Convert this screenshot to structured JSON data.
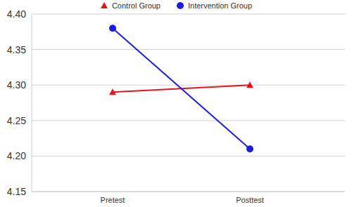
{
  "chart_data": {
    "type": "line",
    "categories": [
      "Pretest",
      "Posttest"
    ],
    "series": [
      {
        "name": "Control Group",
        "color": "#e8141c",
        "marker": "triangle",
        "values": [
          4.29,
          4.3
        ]
      },
      {
        "name": "Intervention Group",
        "color": "#1c1ce0",
        "marker": "circle",
        "values": [
          4.38,
          4.21
        ]
      }
    ],
    "ylim": [
      4.15,
      4.4
    ],
    "yticks": [
      4.15,
      {
        "value": 4.2,
        "label": "4.20"
      },
      4.25,
      {
        "value": 4.3,
        "label": "4.30"
      },
      4.35,
      {
        "value": 4.4,
        "label": "4.40"
      }
    ],
    "grid": true,
    "legend": "top"
  }
}
